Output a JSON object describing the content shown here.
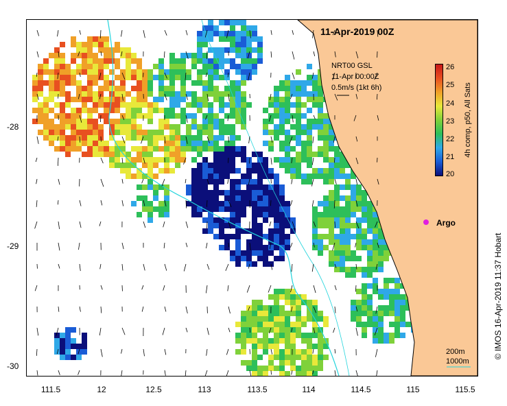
{
  "map": {
    "title": "11-Apr-2019 00Z",
    "product": {
      "line1": "NRT00 GSL",
      "line2": "11-Apr 00:00Z",
      "line3": "0.5m/s (1kt 6h)"
    },
    "colorbar": {
      "label": "4h comp, p50, All Sats",
      "ticks": [
        "26",
        "25",
        "24",
        "23",
        "22",
        "21",
        "20"
      ],
      "min": 20,
      "max": 26,
      "colors": [
        "#0b0f7a",
        "#1a5cd6",
        "#2fa8e8",
        "#2dbf5a",
        "#7fd13a",
        "#e8e83a",
        "#f0a028",
        "#e85020",
        "#c81818"
      ]
    },
    "y_axis_labels": [
      "-28",
      "-29",
      "-30"
    ],
    "x_axis_labels": [
      "111.5",
      "12",
      "12.5",
      "113",
      "113.5",
      "114",
      "114.5",
      "115",
      "115.5"
    ],
    "annotation": {
      "argo": "Argo",
      "scale_short": "200m",
      "scale_long": "1000m"
    },
    "copyright": "© IMOS 16-Apr-2019 11:37 Hobart",
    "colors": {
      "land": "#fac896",
      "isobath": "#22d4dc",
      "argo": "#e01ee0"
    }
  }
}
